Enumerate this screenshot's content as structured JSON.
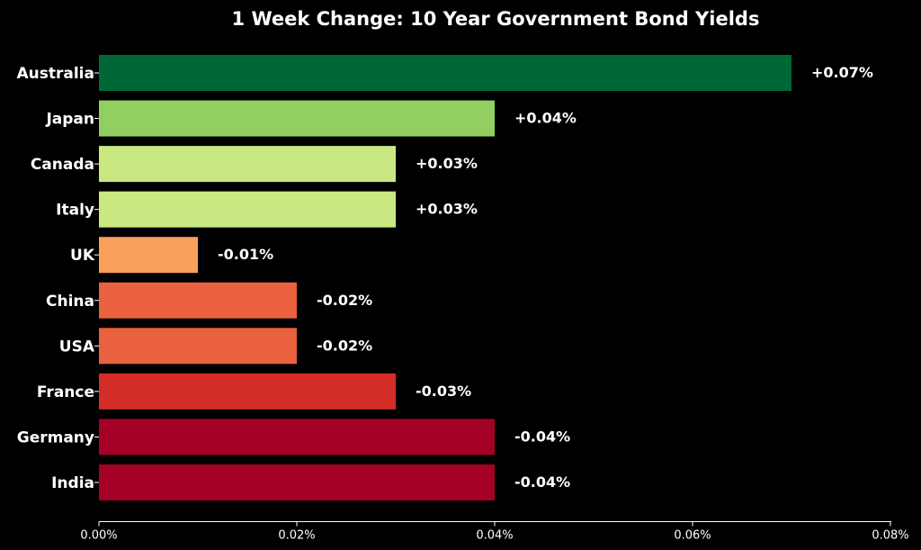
{
  "chart_data": {
    "type": "bar",
    "orientation": "horizontal",
    "title": "1 Week Change: 10 Year Government Bond Yields",
    "xlabel": "",
    "ylabel": "",
    "categories": [
      "Australia",
      "Japan",
      "Canada",
      "Italy",
      "UK",
      "China",
      "USA",
      "France",
      "Germany",
      "India"
    ],
    "values": [
      0.07,
      0.04,
      0.03,
      0.03,
      -0.01,
      -0.02,
      -0.02,
      -0.03,
      -0.04,
      -0.04
    ],
    "data_labels": [
      "+0.07%",
      "+0.04%",
      "+0.03%",
      "+0.03%",
      "-0.01%",
      "-0.02%",
      "-0.02%",
      "-0.03%",
      "-0.04%",
      "-0.04%"
    ],
    "bar_colors": [
      "#006837",
      "#91cf60",
      "#c9e882",
      "#c9e882",
      "#f9a05c",
      "#e9613f",
      "#e9613f",
      "#d42d27",
      "#a50026",
      "#a50026"
    ],
    "bar_length": "absolute value",
    "xlim": [
      0,
      0.08
    ],
    "x_ticks": [
      0,
      0.02,
      0.04,
      0.06,
      0.08
    ],
    "x_tick_labels": [
      "0.00%",
      "0.02%",
      "0.04%",
      "0.06%",
      "0.08%"
    ],
    "grid": false,
    "legend": "none",
    "background_color": "#000000",
    "text_color": "#ffffff"
  }
}
